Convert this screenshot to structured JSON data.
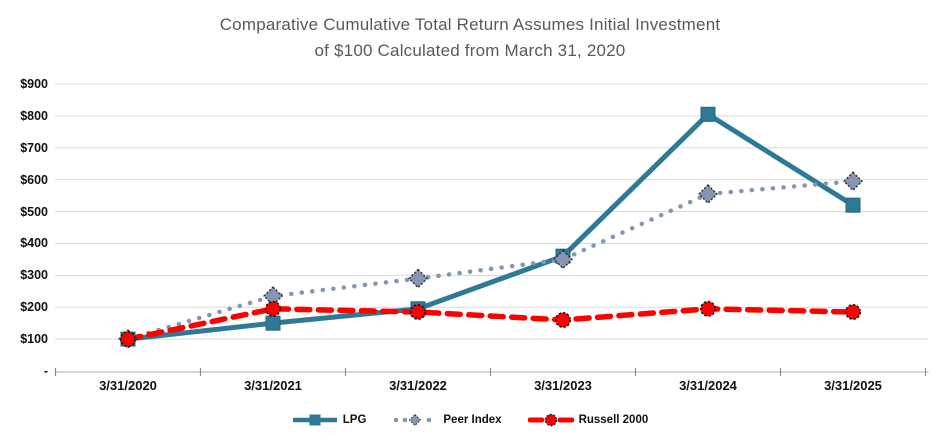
{
  "title": {
    "line1": "Comparative Cumulative Total Return Assumes Initial Investment",
    "line2": "of $100 Calculated from March 31, 2020"
  },
  "chart_data": {
    "type": "line",
    "title": "Comparative Cumulative Total Return Assumes Initial Investment of $100 Calculated from March 31, 2020",
    "categories": [
      "3/31/2020",
      "3/31/2021",
      "3/31/2022",
      "3/31/2023",
      "3/31/2024",
      "3/31/2025"
    ],
    "series": [
      {
        "name": "LPG",
        "color": "#2E7A96",
        "line_style": "solid",
        "marker": "square",
        "values": [
          100,
          150,
          195,
          360,
          805,
          520
        ]
      },
      {
        "name": "Peer Index",
        "color": "#8496B0",
        "line_style": "dotted",
        "marker": "diamond",
        "values": [
          100,
          235,
          290,
          350,
          555,
          595
        ]
      },
      {
        "name": "Russell 2000",
        "color": "#FF0000",
        "line_style": "dashed",
        "marker": "circle",
        "values": [
          100,
          195,
          185,
          160,
          195,
          185
        ]
      }
    ],
    "ylim": [
      0,
      900
    ],
    "y_ticks": [
      {
        "value": 0,
        "label": "-"
      },
      {
        "value": 100,
        "label": "$100"
      },
      {
        "value": 200,
        "label": "$200"
      },
      {
        "value": 300,
        "label": "$300"
      },
      {
        "value": 400,
        "label": "$400"
      },
      {
        "value": 500,
        "label": "$500"
      },
      {
        "value": 600,
        "label": "$600"
      },
      {
        "value": 700,
        "label": "$700"
      },
      {
        "value": 800,
        "label": "$800"
      },
      {
        "value": 900,
        "label": "$900"
      }
    ],
    "grid": true,
    "legend_position": "bottom"
  },
  "colors": {
    "title_text": "#595959",
    "axis_text": "#111111",
    "gridline": "#D9D9D9",
    "axis_line": "#BFBFBF",
    "tick_mark": "#8C8C8C",
    "marker_outline": "#1A1A1A",
    "diamond_outline": "#2F2F3F"
  }
}
